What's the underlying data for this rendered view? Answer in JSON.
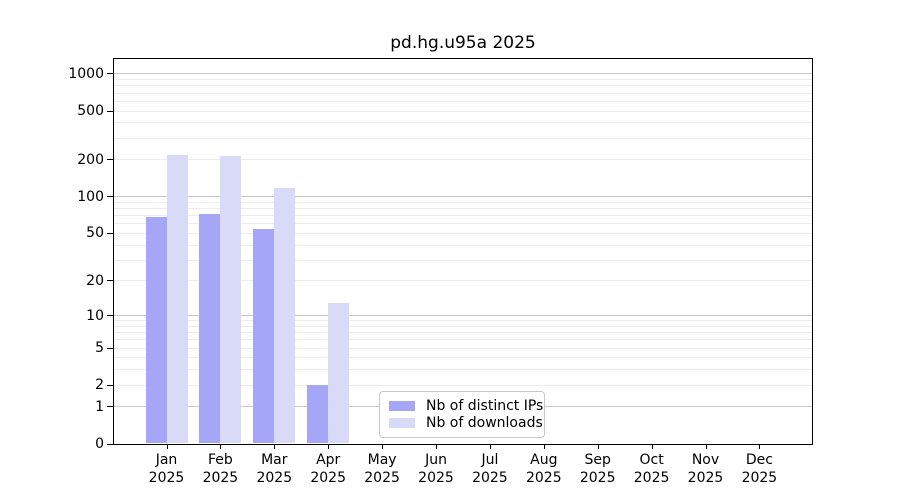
{
  "chart_data": {
    "type": "bar",
    "title": "pd.hg.u95a 2025",
    "categories": [
      "Jan",
      "Feb",
      "Mar",
      "Apr",
      "May",
      "Jun",
      "Jul",
      "Aug",
      "Sep",
      "Oct",
      "Nov",
      "Dec"
    ],
    "category_year": "2025",
    "series": [
      {
        "name": "Nb of distinct IPs",
        "color": "#a6a6f7",
        "values": [
          68,
          72,
          54,
          2,
          0,
          0,
          0,
          0,
          0,
          0,
          0,
          0
        ]
      },
      {
        "name": "Nb of downloads",
        "color": "#d9d9f8",
        "values": [
          220,
          215,
          118,
          13,
          0,
          0,
          0,
          0,
          0,
          0,
          0,
          0
        ]
      }
    ],
    "yscale": "log1p",
    "ylim": [
      0,
      1320
    ],
    "yticks": [
      0,
      1,
      2,
      5,
      10,
      20,
      50,
      100,
      200,
      500,
      1000
    ],
    "grid": "horizontal",
    "grid_major_color": "#c8c8c8",
    "grid_minor_color": "#ececec",
    "legend_position": "inside-bottom-center",
    "plot_background": "#ffffff"
  }
}
